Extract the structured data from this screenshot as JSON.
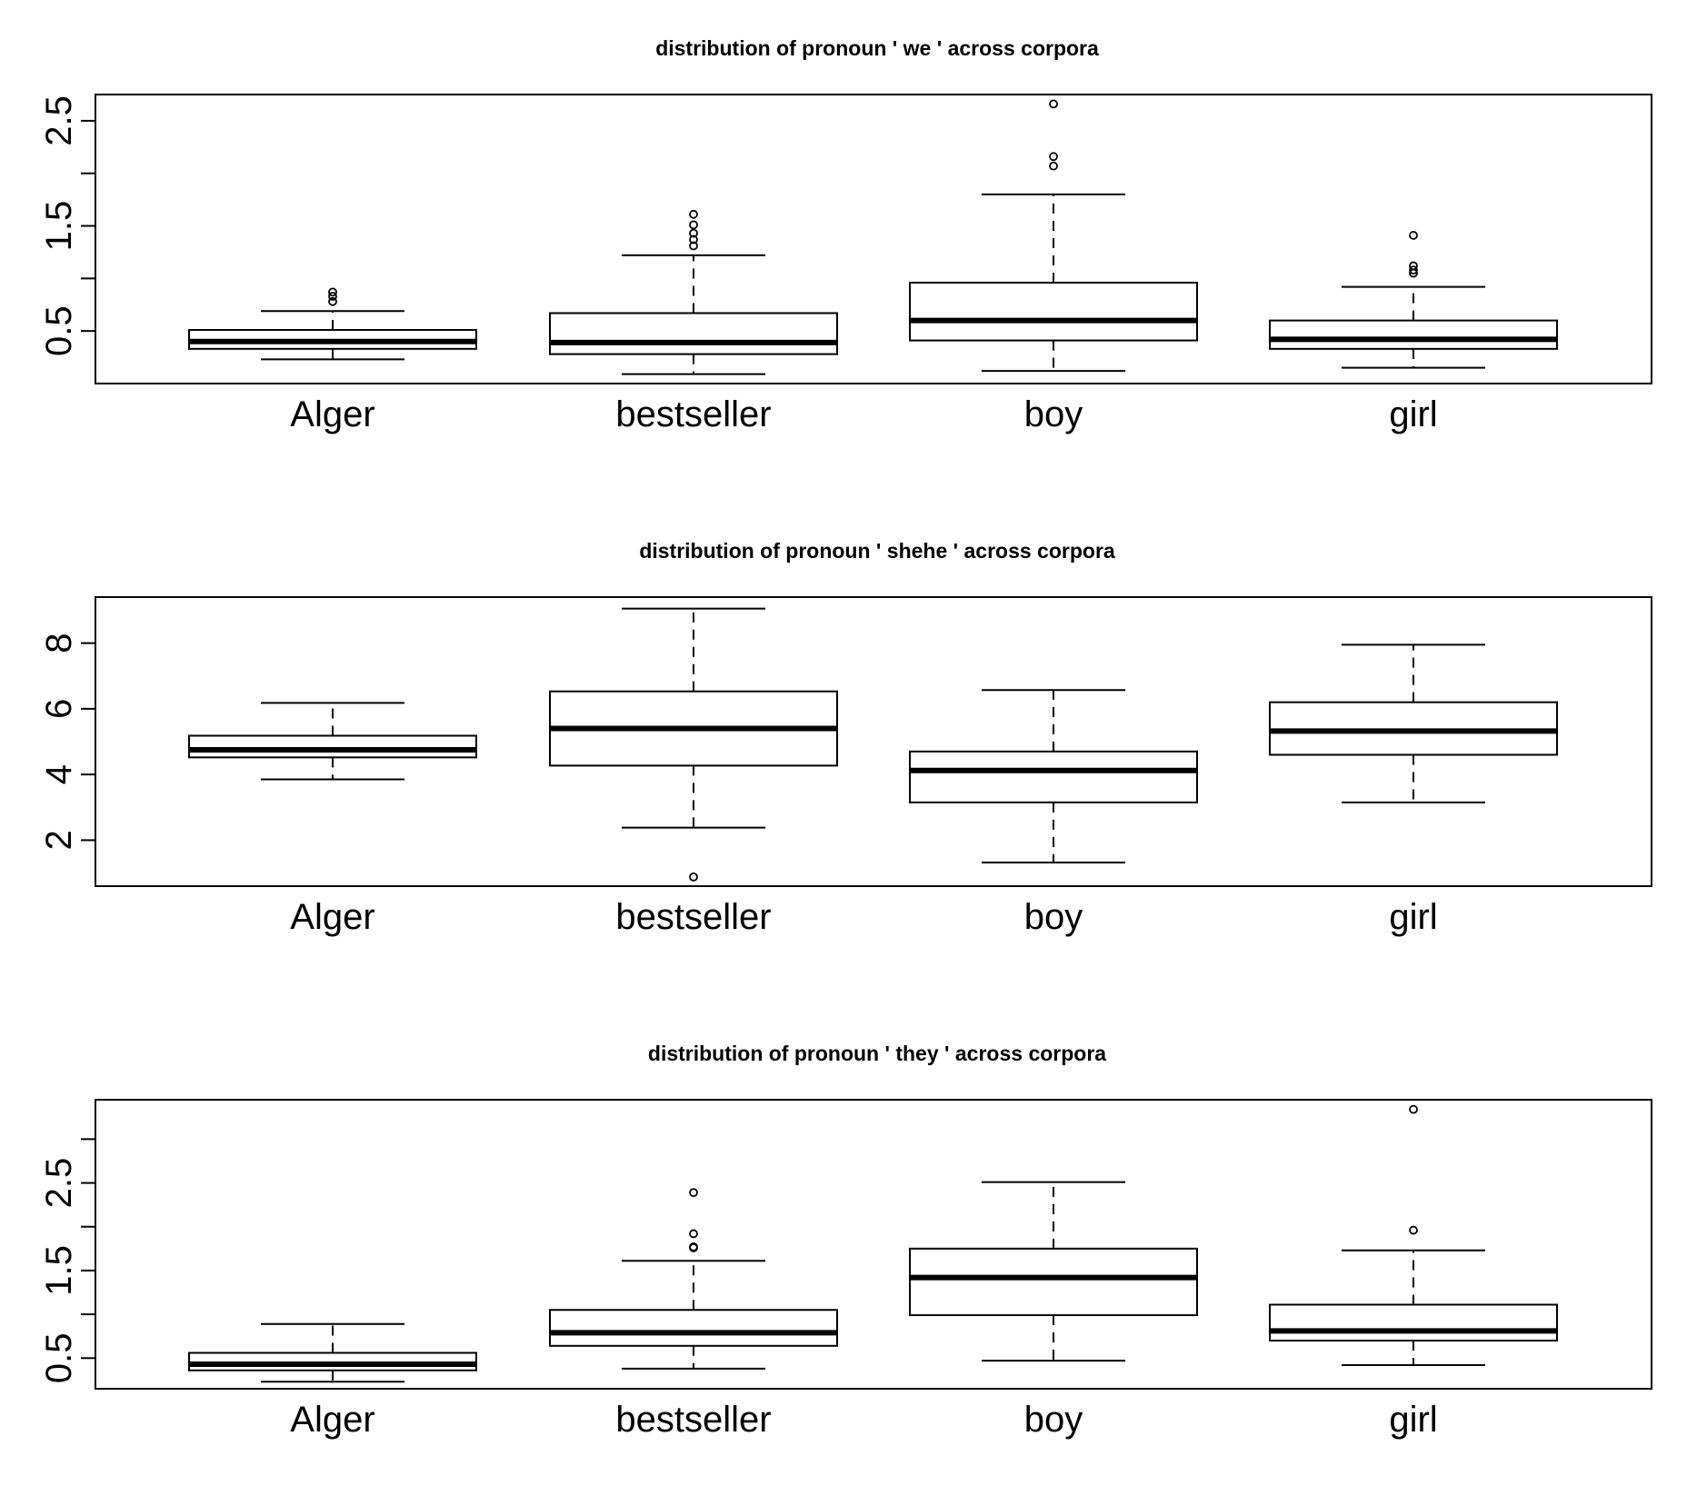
{
  "chart_data": [
    {
      "type": "boxplot",
      "title": "distribution of pronoun ' we ' across corpora",
      "categories": [
        "Alger",
        "bestseller",
        "boy",
        "girl"
      ],
      "ylim": [
        0.0,
        2.75
      ],
      "yticks": [
        0.5,
        1.0,
        1.5,
        2.0,
        2.5
      ],
      "ytick_labels": [
        "0.5",
        "",
        "1.5",
        "",
        "2.5"
      ],
      "boxes": [
        {
          "whisker_low": 0.23,
          "q1": 0.33,
          "median": 0.4,
          "q3": 0.51,
          "whisker_high": 0.69,
          "outliers": [
            0.78,
            0.83,
            0.87
          ]
        },
        {
          "whisker_low": 0.09,
          "q1": 0.28,
          "median": 0.39,
          "q3": 0.67,
          "whisker_high": 1.22,
          "outliers": [
            1.31,
            1.37,
            1.43,
            1.51,
            1.61
          ]
        },
        {
          "whisker_low": 0.12,
          "q1": 0.41,
          "median": 0.6,
          "q3": 0.96,
          "whisker_high": 1.8,
          "outliers": [
            2.07,
            2.16,
            2.66
          ]
        },
        {
          "whisker_low": 0.15,
          "q1": 0.33,
          "median": 0.42,
          "q3": 0.6,
          "whisker_high": 0.92,
          "outliers": [
            1.05,
            1.08,
            1.12,
            1.41
          ]
        }
      ]
    },
    {
      "type": "boxplot",
      "title": "distribution of pronoun ' shehe ' across corpora",
      "categories": [
        "Alger",
        "bestseller",
        "boy",
        "girl"
      ],
      "ylim": [
        0.6,
        9.4
      ],
      "yticks": [
        2,
        4,
        6,
        8
      ],
      "ytick_labels": [
        "2",
        "4",
        "6",
        "8"
      ],
      "boxes": [
        {
          "whisker_low": 3.85,
          "q1": 4.52,
          "median": 4.75,
          "q3": 5.18,
          "whisker_high": 6.18,
          "outliers": []
        },
        {
          "whisker_low": 2.38,
          "q1": 4.27,
          "median": 5.4,
          "q3": 6.53,
          "whisker_high": 9.05,
          "outliers": [
            0.88
          ]
        },
        {
          "whisker_low": 1.32,
          "q1": 3.15,
          "median": 4.12,
          "q3": 4.7,
          "whisker_high": 6.57,
          "outliers": []
        },
        {
          "whisker_low": 3.15,
          "q1": 4.6,
          "median": 5.32,
          "q3": 6.2,
          "whisker_high": 7.95,
          "outliers": []
        }
      ]
    },
    {
      "type": "boxplot",
      "title": "distribution of pronoun ' they ' across corpora",
      "categories": [
        "Alger",
        "bestseller",
        "boy",
        "girl"
      ],
      "ylim": [
        0.15,
        3.45
      ],
      "yticks": [
        0.5,
        1.0,
        1.5,
        2.0,
        2.5,
        3.0
      ],
      "ytick_labels": [
        "0.5",
        "",
        "1.5",
        "",
        "2.5",
        ""
      ],
      "boxes": [
        {
          "whisker_low": 0.23,
          "q1": 0.36,
          "median": 0.43,
          "q3": 0.56,
          "whisker_high": 0.89,
          "outliers": []
        },
        {
          "whisker_low": 0.38,
          "q1": 0.64,
          "median": 0.79,
          "q3": 1.05,
          "whisker_high": 1.61,
          "outliers": [
            1.76,
            1.77,
            1.92,
            2.39
          ]
        },
        {
          "whisker_low": 0.47,
          "q1": 0.99,
          "median": 1.42,
          "q3": 1.75,
          "whisker_high": 2.51,
          "outliers": []
        },
        {
          "whisker_low": 0.42,
          "q1": 0.7,
          "median": 0.81,
          "q3": 1.11,
          "whisker_high": 1.73,
          "outliers": [
            1.96,
            3.34
          ]
        }
      ]
    }
  ]
}
